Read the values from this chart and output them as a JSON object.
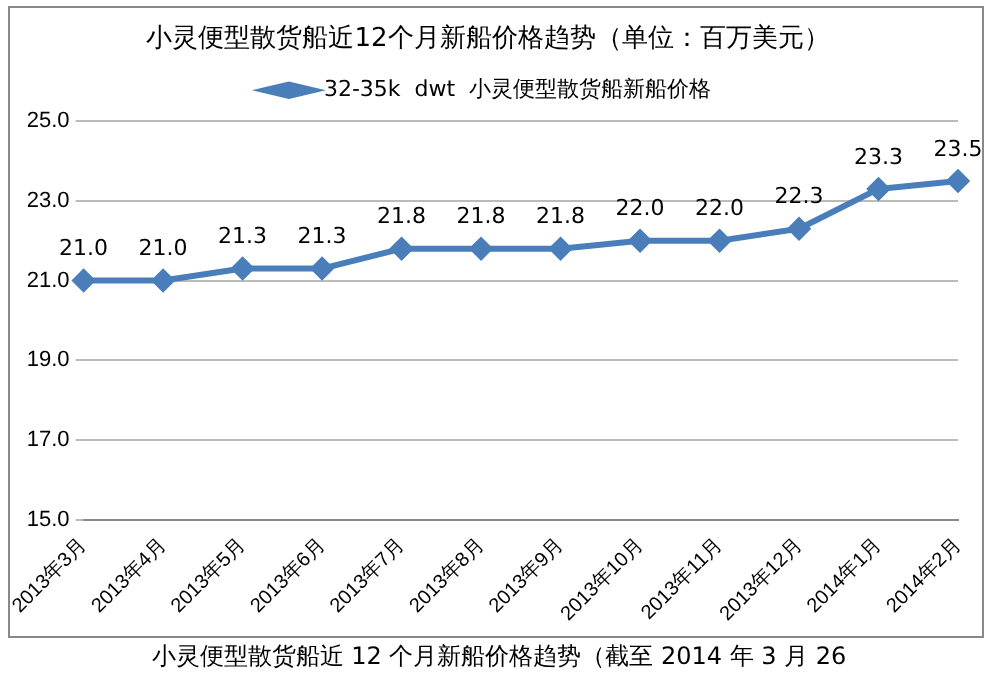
{
  "chart_data": {
    "type": "line",
    "title": "小灵便型散货船近12个月新船价格趋势（单位：百万美元）",
    "categories": [
      "2013年3月",
      "2013年4月",
      "2013年5月",
      "2013年6月",
      "2013年7月",
      "2013年8月",
      "2013年9月",
      "2013年10月",
      "2013年11月",
      "2013年12月",
      "2014年1月",
      "2014年2月"
    ],
    "series": [
      {
        "name": "32-35k  dwt  小灵便型散货船新船价格",
        "color": "#4a7ebb",
        "values": [
          21.0,
          21.0,
          21.3,
          21.3,
          21.8,
          21.8,
          21.8,
          22.0,
          22.0,
          22.3,
          23.3,
          23.5
        ],
        "value_labels": [
          "21.0",
          "21.0",
          "21.3",
          "21.3",
          "21.8",
          "21.8",
          "21.8",
          "22.0",
          "22.0",
          "22.3",
          "23.3",
          "23.5"
        ]
      }
    ],
    "ylim": [
      15,
      25
    ],
    "yticks": [
      {
        "value": 15,
        "label": "15.0"
      },
      {
        "value": 17,
        "label": "17.0"
      },
      {
        "value": 19,
        "label": "19.0"
      },
      {
        "value": 21,
        "label": "21.0"
      },
      {
        "value": 23,
        "label": "23.0"
      },
      {
        "value": 25,
        "label": "25.0"
      }
    ],
    "grid": "y",
    "legend": "top",
    "marker": "diamond",
    "line_style": "solid",
    "annotations": [
      "小灵便型散货船近 12 个月新船价格趋势（截至 2014 年 3 月 26"
    ]
  }
}
